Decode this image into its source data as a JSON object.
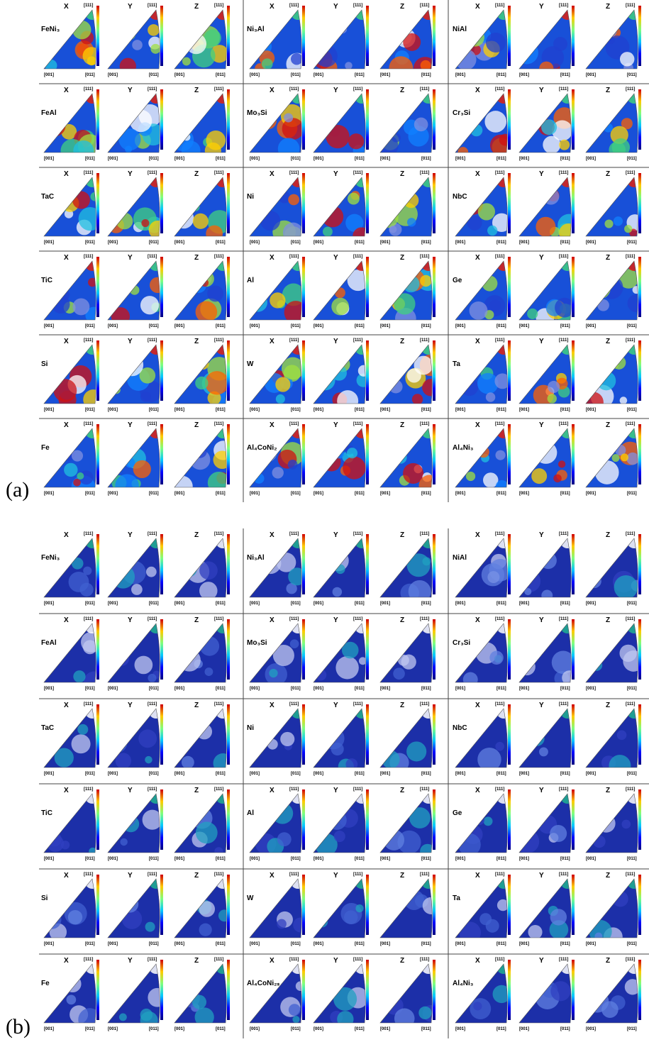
{
  "panels": [
    {
      "label": "(a)",
      "rows": [
        [
          "FeNi₃",
          "Ni₃Al",
          "NiAl"
        ],
        [
          "FeAl",
          "Mo₃Si",
          "Cr₃Si"
        ],
        [
          "TaC",
          "Ni",
          "NbC"
        ],
        [
          "TiC",
          "Al",
          "Ge"
        ],
        [
          "Si",
          "W",
          "Ta"
        ],
        [
          "Fe",
          "Al₄CoNi₂",
          "Al₄Ni₃"
        ]
      ]
    },
    {
      "label": "(b)",
      "rows": [
        [
          "FeNi₃",
          "Ni₃Al",
          "NiAl"
        ],
        [
          "FeAl",
          "Mo₃Si",
          "Cr₃Si"
        ],
        [
          "TaC",
          "Ni",
          "NbC"
        ],
        [
          "TiC",
          "Al",
          "Ge"
        ],
        [
          "Si",
          "W",
          "Ta"
        ],
        [
          "Fe",
          "Al₄CoNi₂ₛ",
          "Al₄Ni₃"
        ]
      ]
    }
  ],
  "axes": [
    "X",
    "Y",
    "Z"
  ],
  "poles": {
    "top": "[111]",
    "left": "[001]",
    "right": "[011]"
  }
}
